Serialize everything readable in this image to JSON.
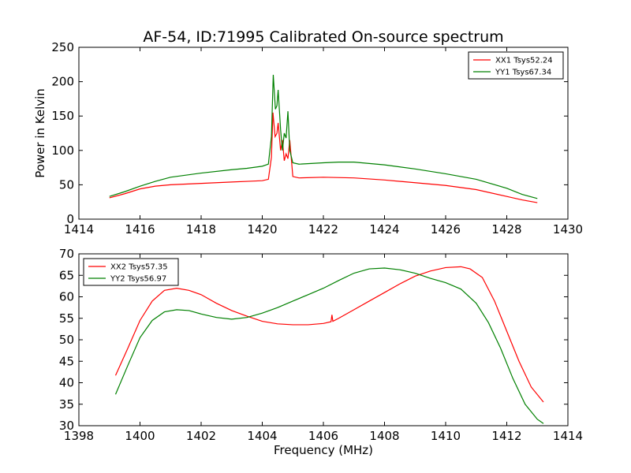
{
  "title": "AF-54, ID:71995 Calibrated On-source spectrum",
  "colors": {
    "red": "#ff0000",
    "green": "#008000"
  },
  "chart_data": [
    {
      "type": "line",
      "ylabel": "Power in Kelvin",
      "xlabel": "",
      "xlim": [
        1414,
        1430
      ],
      "ylim": [
        0,
        250
      ],
      "xticks": [
        1414,
        1416,
        1418,
        1420,
        1422,
        1424,
        1426,
        1428,
        1430
      ],
      "yticks": [
        0,
        50,
        100,
        150,
        200,
        250
      ],
      "legend_position": "top-right",
      "series": [
        {
          "name": "XX1 Tsys52.24",
          "color": "#ff0000",
          "x": [
            1415.0,
            1415.5,
            1416.0,
            1416.5,
            1417.0,
            1418.0,
            1419.0,
            1419.5,
            1420.0,
            1420.2,
            1420.3,
            1420.35,
            1420.42,
            1420.48,
            1420.52,
            1420.6,
            1420.66,
            1420.72,
            1420.78,
            1420.84,
            1420.9,
            1421.0,
            1421.2,
            1422.0,
            1423.0,
            1424.0,
            1425.0,
            1426.0,
            1427.0,
            1428.0,
            1428.5,
            1429.0
          ],
          "y": [
            31,
            37,
            44,
            48,
            50,
            52,
            54,
            55,
            56,
            58,
            90,
            155,
            120,
            125,
            140,
            100,
            115,
            85,
            95,
            88,
            115,
            62,
            60,
            61,
            60,
            57,
            53,
            49,
            43,
            33,
            28,
            24
          ]
        },
        {
          "name": "YY1 Tsys67.34",
          "color": "#008000",
          "x": [
            1415.0,
            1415.5,
            1416.0,
            1416.5,
            1417.0,
            1418.0,
            1419.0,
            1419.5,
            1420.0,
            1420.2,
            1420.3,
            1420.36,
            1420.43,
            1420.48,
            1420.52,
            1420.6,
            1420.66,
            1420.72,
            1420.78,
            1420.84,
            1420.9,
            1421.0,
            1421.2,
            1422.0,
            1422.5,
            1423.0,
            1424.0,
            1425.0,
            1426.0,
            1427.0,
            1428.0,
            1428.5,
            1429.0
          ],
          "y": [
            33,
            40,
            48,
            55,
            61,
            67,
            72,
            74,
            77,
            80,
            120,
            210,
            160,
            165,
            188,
            130,
            100,
            125,
            118,
            157,
            100,
            82,
            80,
            82,
            83,
            83,
            79,
            73,
            66,
            58,
            45,
            36,
            30
          ]
        }
      ]
    },
    {
      "type": "line",
      "xlabel": "Frequency (MHz)",
      "ylabel": "",
      "xlim": [
        1398,
        1414
      ],
      "ylim": [
        30,
        70
      ],
      "xticks": [
        1398,
        1400,
        1402,
        1404,
        1406,
        1408,
        1410,
        1412,
        1414
      ],
      "yticks": [
        30,
        35,
        40,
        45,
        50,
        55,
        60,
        65,
        70
      ],
      "legend_position": "top-left",
      "series": [
        {
          "name": "XX2 Tsys57.35",
          "color": "#ff0000",
          "x": [
            1399.2,
            1399.6,
            1400.0,
            1400.4,
            1400.8,
            1401.2,
            1401.6,
            1402.0,
            1402.5,
            1403.0,
            1403.5,
            1404.0,
            1404.5,
            1405.0,
            1405.5,
            1406.0,
            1406.25,
            1406.28,
            1406.31,
            1406.5,
            1407.0,
            1407.5,
            1408.0,
            1408.5,
            1409.0,
            1409.5,
            1410.0,
            1410.5,
            1410.8,
            1411.2,
            1411.6,
            1412.0,
            1412.4,
            1412.8,
            1413.2
          ],
          "y": [
            41.7,
            48,
            54.5,
            59,
            61.5,
            62,
            61.5,
            60.5,
            58.5,
            56.8,
            55.5,
            54.3,
            53.7,
            53.5,
            53.5,
            53.8,
            54.2,
            55.8,
            54.3,
            55,
            57,
            59,
            61,
            63,
            64.8,
            66,
            66.8,
            67,
            66.5,
            64.5,
            59,
            52,
            45,
            39,
            35.5
          ]
        },
        {
          "name": "YY2 Tsys56.97",
          "color": "#008000",
          "x": [
            1399.2,
            1399.6,
            1400.0,
            1400.4,
            1400.8,
            1401.2,
            1401.6,
            1402.0,
            1402.5,
            1403.0,
            1403.5,
            1404.0,
            1404.5,
            1405.0,
            1405.5,
            1406.0,
            1406.5,
            1407.0,
            1407.5,
            1408.0,
            1408.5,
            1409.0,
            1409.5,
            1410.0,
            1410.5,
            1411.0,
            1411.4,
            1411.8,
            1412.2,
            1412.6,
            1413.0,
            1413.2
          ],
          "y": [
            37.3,
            44,
            50.5,
            54.5,
            56.5,
            57,
            56.8,
            56,
            55.2,
            54.8,
            55.2,
            56.2,
            57.5,
            59,
            60.5,
            62,
            63.8,
            65.5,
            66.5,
            66.7,
            66.3,
            65.5,
            64.3,
            63.3,
            61.8,
            58.5,
            54,
            48,
            41,
            35,
            31.5,
            30.5
          ]
        }
      ]
    }
  ]
}
